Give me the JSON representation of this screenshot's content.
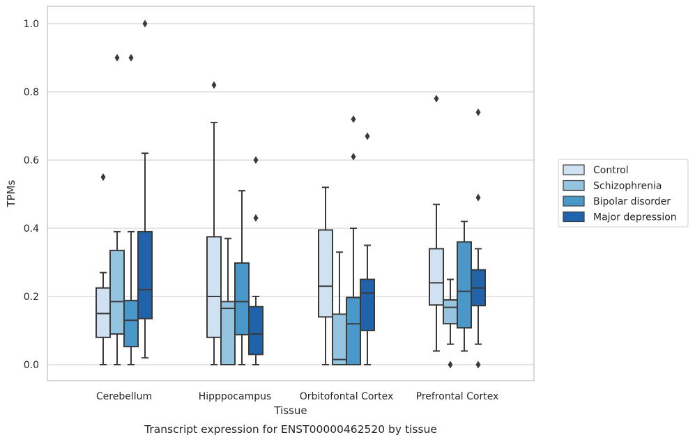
{
  "caption": "Transcript expression for ENST00000462520 by tissue",
  "chart_data": {
    "type": "boxplot",
    "xlabel": "Tissue",
    "ylabel": "TPMs",
    "ylim": [
      -0.05,
      1.05
    ],
    "yticks": [
      0.0,
      0.2,
      0.4,
      0.6,
      0.8,
      1.0
    ],
    "ytick_labels": [
      "0.0",
      "0.2",
      "0.4",
      "0.6",
      "0.8",
      "1.0"
    ],
    "grid": "horizontal",
    "legend_position": "right",
    "categories": [
      "Cerebellum",
      "Hipppocampus",
      "Orbitofontal Cortex",
      "Prefrontal Cortex"
    ],
    "series": [
      {
        "name": "Control",
        "color": "#d0e1f2",
        "boxes": [
          {
            "whislo": 0.0,
            "q1": 0.08,
            "med": 0.15,
            "q3": 0.225,
            "whishi": 0.27,
            "fliers": [
              0.55
            ]
          },
          {
            "whislo": 0.0,
            "q1": 0.08,
            "med": 0.2,
            "q3": 0.375,
            "whishi": 0.71,
            "fliers": [
              0.82
            ]
          },
          {
            "whislo": 0.0,
            "q1": 0.14,
            "med": 0.23,
            "q3": 0.395,
            "whishi": 0.52,
            "fliers": []
          },
          {
            "whislo": 0.04,
            "q1": 0.175,
            "med": 0.24,
            "q3": 0.34,
            "whishi": 0.47,
            "fliers": [
              0.78
            ]
          }
        ]
      },
      {
        "name": "Schizophrenia",
        "color": "#94c4df",
        "boxes": [
          {
            "whislo": 0.0,
            "q1": 0.09,
            "med": 0.185,
            "q3": 0.335,
            "whishi": 0.39,
            "fliers": [
              0.9
            ]
          },
          {
            "whislo": 0.0,
            "q1": 0.0,
            "med": 0.165,
            "q3": 0.185,
            "whishi": 0.37,
            "fliers": []
          },
          {
            "whislo": 0.0,
            "q1": 0.0,
            "med": 0.015,
            "q3": 0.148,
            "whishi": 0.33,
            "fliers": []
          },
          {
            "whislo": 0.06,
            "q1": 0.12,
            "med": 0.168,
            "q3": 0.19,
            "whishi": 0.25,
            "fliers": [
              0.0
            ]
          }
        ]
      },
      {
        "name": "Bipolar disorder",
        "color": "#4a98c9",
        "boxes": [
          {
            "whislo": 0.0,
            "q1": 0.053,
            "med": 0.13,
            "q3": 0.188,
            "whishi": 0.39,
            "fliers": [
              0.9
            ]
          },
          {
            "whislo": 0.0,
            "q1": 0.088,
            "med": 0.185,
            "q3": 0.298,
            "whishi": 0.51,
            "fliers": []
          },
          {
            "whislo": 0.0,
            "q1": 0.0,
            "med": 0.12,
            "q3": 0.197,
            "whishi": 0.4,
            "fliers": [
              0.61,
              0.72
            ]
          },
          {
            "whislo": 0.04,
            "q1": 0.108,
            "med": 0.215,
            "q3": 0.36,
            "whishi": 0.42,
            "fliers": []
          }
        ]
      },
      {
        "name": "Major depression",
        "color": "#2163aa",
        "boxes": [
          {
            "whislo": 0.02,
            "q1": 0.135,
            "med": 0.22,
            "q3": 0.39,
            "whishi": 0.62,
            "fliers": [
              1.0
            ]
          },
          {
            "whislo": 0.0,
            "q1": 0.03,
            "med": 0.09,
            "q3": 0.17,
            "whishi": 0.2,
            "fliers": [
              0.43,
              0.6
            ]
          },
          {
            "whislo": 0.0,
            "q1": 0.1,
            "med": 0.21,
            "q3": 0.25,
            "whishi": 0.35,
            "fliers": [
              0.67
            ]
          },
          {
            "whislo": 0.06,
            "q1": 0.173,
            "med": 0.225,
            "q3": 0.278,
            "whishi": 0.34,
            "fliers": [
              0.0,
              0.49,
              0.74
            ]
          }
        ]
      }
    ]
  }
}
